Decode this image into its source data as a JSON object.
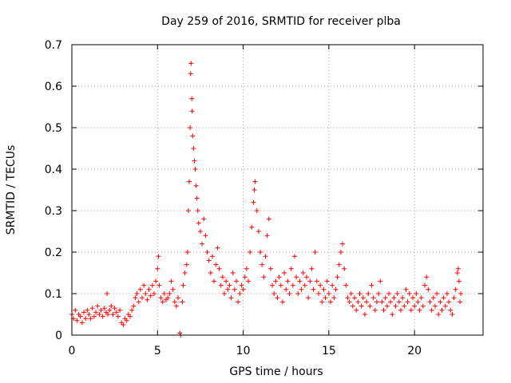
{
  "chart_data": {
    "type": "scatter",
    "title": "Day 259 of 2016, SRMTID for receiver plba",
    "xlabel": "GPS time / hours",
    "ylabel": "SRMTID / TECUs",
    "xlim": [
      0,
      24
    ],
    "ylim": [
      0,
      0.7
    ],
    "xticks": [
      0,
      5,
      10,
      15,
      20
    ],
    "xtick_labels": [
      "0",
      "5",
      "10",
      "15",
      "20"
    ],
    "yticks": [
      0,
      0.1,
      0.2,
      0.3,
      0.4,
      0.5,
      0.6,
      0.7
    ],
    "ytick_labels": [
      "0",
      "0.1",
      "0.2",
      "0.3",
      "0.4",
      "0.5",
      "0.6",
      "0.7"
    ],
    "grid": true,
    "marker": "+",
    "color": "#ff0000",
    "series": [
      {
        "name": "SRMTID",
        "points": [
          [
            0.0,
            0.05
          ],
          [
            0.1,
            0.04
          ],
          [
            0.2,
            0.06
          ],
          [
            0.3,
            0.035
          ],
          [
            0.4,
            0.05
          ],
          [
            0.5,
            0.045
          ],
          [
            0.6,
            0.03
          ],
          [
            0.7,
            0.055
          ],
          [
            0.8,
            0.04
          ],
          [
            0.9,
            0.06
          ],
          [
            1.0,
            0.05
          ],
          [
            1.1,
            0.04
          ],
          [
            1.2,
            0.065
          ],
          [
            1.3,
            0.045
          ],
          [
            1.4,
            0.055
          ],
          [
            1.5,
            0.07
          ],
          [
            1.6,
            0.05
          ],
          [
            1.7,
            0.06
          ],
          [
            1.8,
            0.045
          ],
          [
            1.9,
            0.065
          ],
          [
            2.0,
            0.055
          ],
          [
            2.05,
            0.1
          ],
          [
            2.1,
            0.05
          ],
          [
            2.2,
            0.06
          ],
          [
            2.3,
            0.07
          ],
          [
            2.4,
            0.05
          ],
          [
            2.5,
            0.065
          ],
          [
            2.6,
            0.055
          ],
          [
            2.7,
            0.045
          ],
          [
            2.8,
            0.06
          ],
          [
            2.9,
            0.03
          ],
          [
            3.0,
            0.025
          ],
          [
            3.1,
            0.04
          ],
          [
            3.2,
            0.035
          ],
          [
            3.3,
            0.05
          ],
          [
            3.4,
            0.045
          ],
          [
            3.5,
            0.06
          ],
          [
            3.6,
            0.07
          ],
          [
            3.7,
            0.09
          ],
          [
            3.8,
            0.1
          ],
          [
            3.9,
            0.08
          ],
          [
            4.0,
            0.11
          ],
          [
            4.1,
            0.09
          ],
          [
            4.2,
            0.12
          ],
          [
            4.3,
            0.1
          ],
          [
            4.4,
            0.085
          ],
          [
            4.5,
            0.11
          ],
          [
            4.6,
            0.095
          ],
          [
            4.7,
            0.12
          ],
          [
            4.8,
            0.1
          ],
          [
            4.9,
            0.13
          ],
          [
            5.0,
            0.16
          ],
          [
            5.05,
            0.19
          ],
          [
            5.1,
            0.12
          ],
          [
            5.2,
            0.09
          ],
          [
            5.3,
            0.08
          ],
          [
            5.4,
            0.1
          ],
          [
            5.5,
            0.085
          ],
          [
            5.6,
            0.09
          ],
          [
            5.7,
            0.1
          ],
          [
            5.8,
            0.13
          ],
          [
            5.9,
            0.11
          ],
          [
            6.0,
            0.08
          ],
          [
            6.1,
            0.07
          ],
          [
            6.2,
            0.09
          ],
          [
            6.3,
            0.005
          ],
          [
            6.35,
            0.0
          ],
          [
            6.45,
            0.08
          ],
          [
            6.5,
            0.12
          ],
          [
            6.6,
            0.15
          ],
          [
            6.7,
            0.17
          ],
          [
            6.75,
            0.2
          ],
          [
            6.8,
            0.3
          ],
          [
            6.85,
            0.37
          ],
          [
            6.9,
            0.5
          ],
          [
            6.93,
            0.63
          ],
          [
            6.96,
            0.655
          ],
          [
            7.0,
            0.57
          ],
          [
            7.02,
            0.54
          ],
          [
            7.05,
            0.48
          ],
          [
            7.1,
            0.45
          ],
          [
            7.15,
            0.42
          ],
          [
            7.2,
            0.4
          ],
          [
            7.25,
            0.36
          ],
          [
            7.3,
            0.33
          ],
          [
            7.35,
            0.3
          ],
          [
            7.4,
            0.27
          ],
          [
            7.5,
            0.25
          ],
          [
            7.6,
            0.22
          ],
          [
            7.7,
            0.28
          ],
          [
            7.8,
            0.24
          ],
          [
            7.9,
            0.2
          ],
          [
            8.0,
            0.18
          ],
          [
            8.1,
            0.15
          ],
          [
            8.2,
            0.19
          ],
          [
            8.3,
            0.13
          ],
          [
            8.4,
            0.17
          ],
          [
            8.5,
            0.21
          ],
          [
            8.6,
            0.16
          ],
          [
            8.7,
            0.12
          ],
          [
            8.8,
            0.14
          ],
          [
            8.9,
            0.1
          ],
          [
            9.0,
            0.13
          ],
          [
            9.1,
            0.11
          ],
          [
            9.2,
            0.12
          ],
          [
            9.3,
            0.09
          ],
          [
            9.4,
            0.15
          ],
          [
            9.5,
            0.11
          ],
          [
            9.6,
            0.13
          ],
          [
            9.7,
            0.08
          ],
          [
            9.8,
            0.1
          ],
          [
            9.9,
            0.12
          ],
          [
            10.0,
            0.11
          ],
          [
            10.1,
            0.14
          ],
          [
            10.2,
            0.16
          ],
          [
            10.3,
            0.13
          ],
          [
            10.4,
            0.2
          ],
          [
            10.5,
            0.26
          ],
          [
            10.6,
            0.32
          ],
          [
            10.65,
            0.35
          ],
          [
            10.7,
            0.37
          ],
          [
            10.8,
            0.3
          ],
          [
            10.9,
            0.25
          ],
          [
            11.0,
            0.2
          ],
          [
            11.1,
            0.17
          ],
          [
            11.2,
            0.14
          ],
          [
            11.3,
            0.19
          ],
          [
            11.4,
            0.24
          ],
          [
            11.5,
            0.28
          ],
          [
            11.6,
            0.16
          ],
          [
            11.7,
            0.12
          ],
          [
            11.8,
            0.1
          ],
          [
            11.9,
            0.13
          ],
          [
            12.0,
            0.09
          ],
          [
            12.1,
            0.14
          ],
          [
            12.2,
            0.12
          ],
          [
            12.3,
            0.08
          ],
          [
            12.4,
            0.15
          ],
          [
            12.5,
            0.11
          ],
          [
            12.6,
            0.13
          ],
          [
            12.7,
            0.1
          ],
          [
            12.8,
            0.16
          ],
          [
            12.9,
            0.12
          ],
          [
            13.0,
            0.19
          ],
          [
            13.1,
            0.14
          ],
          [
            13.2,
            0.1
          ],
          [
            13.3,
            0.13
          ],
          [
            13.4,
            0.11
          ],
          [
            13.5,
            0.15
          ],
          [
            13.6,
            0.12
          ],
          [
            13.7,
            0.14
          ],
          [
            13.8,
            0.09
          ],
          [
            13.9,
            0.13
          ],
          [
            14.0,
            0.16
          ],
          [
            14.1,
            0.11
          ],
          [
            14.2,
            0.2
          ],
          [
            14.3,
            0.13
          ],
          [
            14.4,
            0.1
          ],
          [
            14.5,
            0.12
          ],
          [
            14.6,
            0.08
          ],
          [
            14.7,
            0.11
          ],
          [
            14.8,
            0.09
          ],
          [
            14.9,
            0.13
          ],
          [
            15.0,
            0.1
          ],
          [
            15.1,
            0.08
          ],
          [
            15.2,
            0.12
          ],
          [
            15.3,
            0.09
          ],
          [
            15.4,
            0.11
          ],
          [
            15.5,
            0.14
          ],
          [
            15.6,
            0.17
          ],
          [
            15.7,
            0.2
          ],
          [
            15.8,
            0.22
          ],
          [
            15.9,
            0.16
          ],
          [
            16.0,
            0.12
          ],
          [
            16.1,
            0.09
          ],
          [
            16.2,
            0.08
          ],
          [
            16.3,
            0.1
          ],
          [
            16.4,
            0.07
          ],
          [
            16.5,
            0.09
          ],
          [
            16.6,
            0.06
          ],
          [
            16.7,
            0.08
          ],
          [
            16.8,
            0.1
          ],
          [
            16.9,
            0.07
          ],
          [
            17.0,
            0.09
          ],
          [
            17.1,
            0.05
          ],
          [
            17.2,
            0.08
          ],
          [
            17.3,
            0.1
          ],
          [
            17.4,
            0.07
          ],
          [
            17.5,
            0.12
          ],
          [
            17.6,
            0.09
          ],
          [
            17.7,
            0.06
          ],
          [
            17.8,
            0.08
          ],
          [
            17.9,
            0.1
          ],
          [
            18.0,
            0.13
          ],
          [
            18.1,
            0.08
          ],
          [
            18.2,
            0.06
          ],
          [
            18.3,
            0.09
          ],
          [
            18.4,
            0.07
          ],
          [
            18.5,
            0.1
          ],
          [
            18.6,
            0.08
          ],
          [
            18.7,
            0.05
          ],
          [
            18.8,
            0.09
          ],
          [
            18.9,
            0.07
          ],
          [
            19.0,
            0.1
          ],
          [
            19.1,
            0.08
          ],
          [
            19.2,
            0.06
          ],
          [
            19.3,
            0.09
          ],
          [
            19.4,
            0.07
          ],
          [
            19.5,
            0.11
          ],
          [
            19.6,
            0.08
          ],
          [
            19.7,
            0.1
          ],
          [
            19.8,
            0.06
          ],
          [
            19.9,
            0.09
          ],
          [
            20.0,
            0.07
          ],
          [
            20.1,
            0.1
          ],
          [
            20.2,
            0.08
          ],
          [
            20.3,
            0.06
          ],
          [
            20.4,
            0.09
          ],
          [
            20.5,
            0.07
          ],
          [
            20.6,
            0.12
          ],
          [
            20.7,
            0.14
          ],
          [
            20.8,
            0.11
          ],
          [
            20.9,
            0.08
          ],
          [
            21.0,
            0.06
          ],
          [
            21.1,
            0.09
          ],
          [
            21.2,
            0.07
          ],
          [
            21.3,
            0.1
          ],
          [
            21.4,
            0.05
          ],
          [
            21.5,
            0.08
          ],
          [
            21.6,
            0.06
          ],
          [
            21.7,
            0.09
          ],
          [
            21.8,
            0.07
          ],
          [
            21.9,
            0.1
          ],
          [
            22.0,
            0.08
          ],
          [
            22.1,
            0.06
          ],
          [
            22.2,
            0.05
          ],
          [
            22.3,
            0.09
          ],
          [
            22.4,
            0.11
          ],
          [
            22.5,
            0.15
          ],
          [
            22.55,
            0.16
          ],
          [
            22.6,
            0.13
          ],
          [
            22.65,
            0.08
          ],
          [
            22.7,
            0.1
          ]
        ]
      }
    ]
  }
}
